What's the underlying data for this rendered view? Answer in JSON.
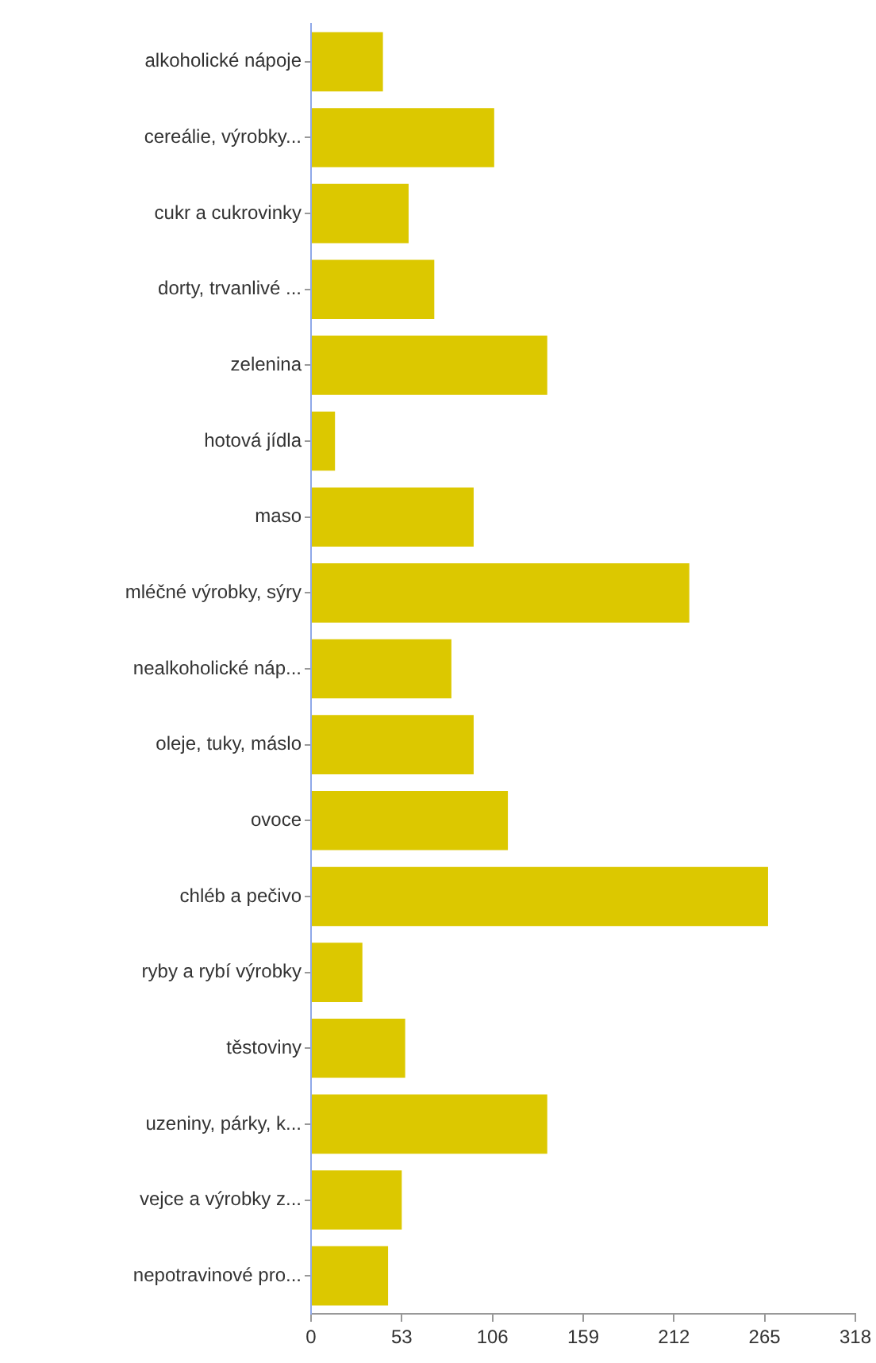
{
  "chart_data": {
    "type": "bar",
    "orientation": "horizontal",
    "categories": [
      "alkoholické nápoje",
      "cereálie, výrobky...",
      "cukr a cukrovinky",
      "dorty, trvanlivé ...",
      "zelenina",
      "hotová jídla",
      "maso",
      "mléčné výrobky, sýry",
      "nealkoholické náp...",
      "oleje, tuky, máslo",
      "ovoce",
      "chléb a pečivo",
      "ryby a rybí výrobky",
      "těstoviny",
      "uzeniny, párky, k...",
      "vejce a výrobky z...",
      "nepotravinové pro..."
    ],
    "values": [
      42,
      107,
      57,
      72,
      138,
      14,
      95,
      221,
      82,
      95,
      115,
      267,
      30,
      55,
      138,
      53,
      45
    ],
    "color": "#dcc800",
    "xlim": [
      0,
      318
    ],
    "xticks": [
      0,
      53,
      106,
      159,
      212,
      265,
      318
    ],
    "grid": false,
    "legend": false
  }
}
